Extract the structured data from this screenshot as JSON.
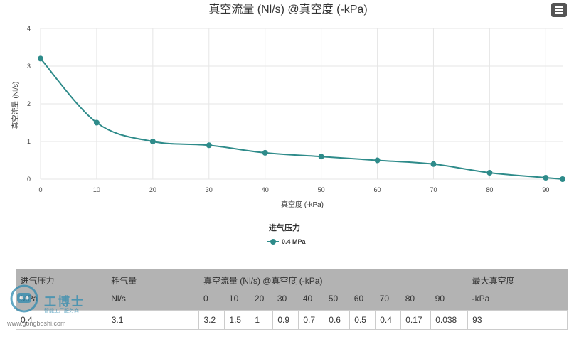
{
  "chart_data": {
    "type": "line",
    "title": "真空流量 (Nl/s) @真空度 (-kPa)",
    "xlabel": "真空度 (-kPa)",
    "ylabel": "真空流量 (Nl/s)",
    "xlim": [
      0,
      93
    ],
    "ylim": [
      0,
      4
    ],
    "xticks": [
      0,
      10,
      20,
      30,
      40,
      50,
      60,
      70,
      80,
      90
    ],
    "yticks": [
      0,
      1,
      2,
      3,
      4
    ],
    "grid": true,
    "legend_title": "进气压力",
    "legend_position": "bottom-center",
    "series": [
      {
        "name": "0.4 MPa",
        "color": "#2e8b8a",
        "x": [
          0,
          10,
          20,
          30,
          40,
          50,
          60,
          70,
          80,
          90,
          93
        ],
        "y": [
          3.2,
          1.5,
          1,
          0.9,
          0.7,
          0.6,
          0.5,
          0.4,
          0.17,
          0.038,
          0
        ]
      }
    ]
  },
  "table": {
    "header_row1": [
      "进气压力",
      "耗气量",
      "真空流量 (Nl/s) @真空度 (-kPa)",
      "最大真空度"
    ],
    "header_row2": [
      "MPa",
      "Nl/s",
      "0",
      "10",
      "20",
      "30",
      "40",
      "50",
      "60",
      "70",
      "80",
      "90",
      "-kPa"
    ],
    "row": [
      "0.4",
      "3.1",
      "3.2",
      "1.5",
      "1",
      "0.9",
      "0.7",
      "0.6",
      "0.5",
      "0.4",
      "0.17",
      "0.038",
      "93"
    ]
  },
  "watermark": {
    "brand": "工博士",
    "tagline": "智能工厂服务商",
    "url": "www.gongboshi.com"
  },
  "icons": {
    "menu": "hamburger-menu-icon"
  }
}
